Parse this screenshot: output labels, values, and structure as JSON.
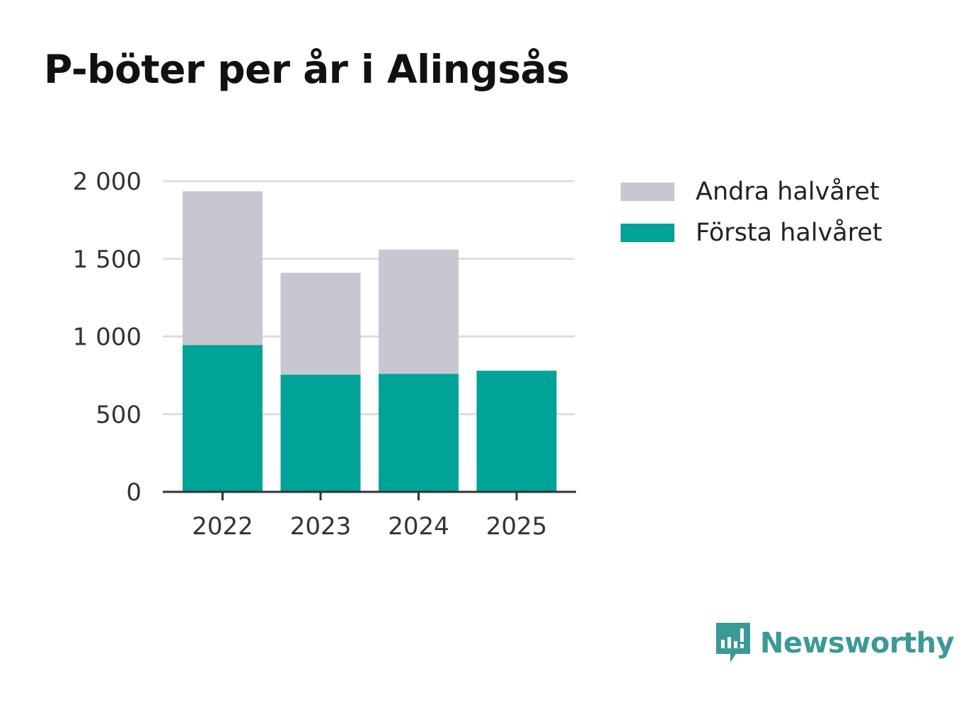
{
  "title": "P-böter per år i Alingsås",
  "chart_data": {
    "type": "bar",
    "stacked": true,
    "title": "P-böter per år i Alingsås",
    "categories": [
      "2022",
      "2023",
      "2024",
      "2025"
    ],
    "series": [
      {
        "name": "Första halvåret",
        "color": "#00a398",
        "values": [
          945,
          755,
          760,
          780
        ]
      },
      {
        "name": "Andra halvåret",
        "color": "#c8c7d1",
        "values": [
          990,
          655,
          800,
          0
        ]
      }
    ],
    "yticks": [
      0,
      500,
      1000,
      1500,
      2000
    ],
    "ytick_labels": [
      "0",
      "500",
      "1 000",
      "1 500",
      "2 000"
    ],
    "ylim": [
      0,
      2000
    ],
    "xlabel": "",
    "ylabel": "",
    "grid": true,
    "legend_position": "right"
  },
  "legend": [
    {
      "label": "Andra halvåret",
      "color": "#c8c7d1"
    },
    {
      "label": "Första halvåret",
      "color": "#00a398"
    }
  ],
  "brand": {
    "name": "Newsworthy",
    "icon": "newsworthy-logo-icon",
    "color": "#3a9a97"
  }
}
